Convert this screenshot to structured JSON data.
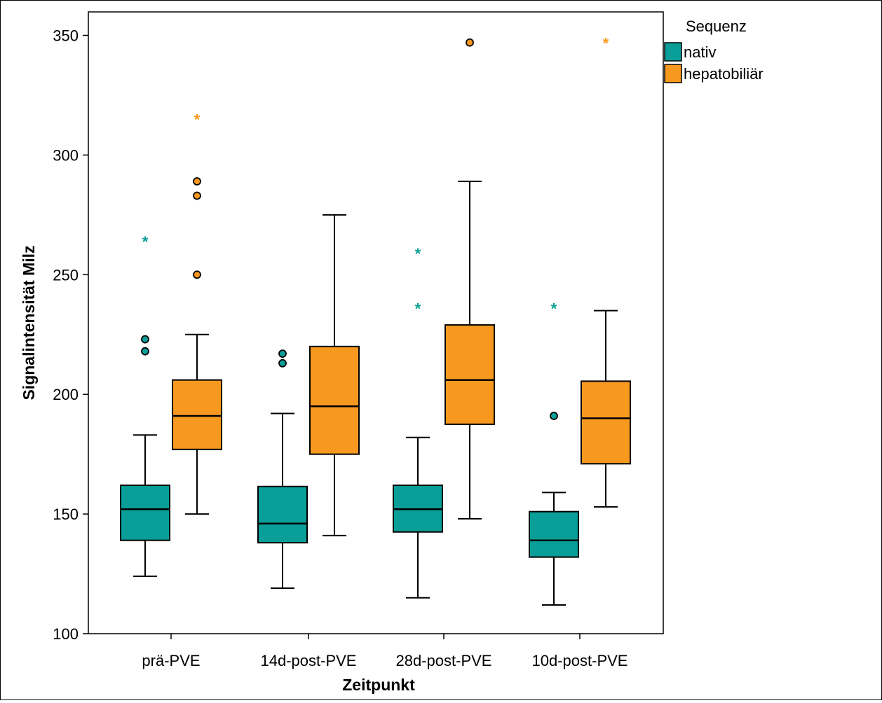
{
  "chart_data": {
    "type": "boxplot",
    "title": "",
    "xlabel": "Zeitpunkt",
    "ylabel": "Signalintensität Milz",
    "ylim": [
      100,
      360
    ],
    "yticks": [
      100,
      150,
      200,
      250,
      300,
      350
    ],
    "categories": [
      "prä-PVE",
      "14d-post-PVE",
      "28d-post-PVE",
      "10d-post-PVE"
    ],
    "grid": false,
    "legend": {
      "title": "Sequenz",
      "placement": "top-right outside"
    },
    "series": [
      {
        "name": "nativ",
        "color": "#0a9e98",
        "boxes": [
          {
            "whisker_low": 124,
            "q1": 139,
            "median": 152,
            "q3": 162,
            "whisker_high": 183,
            "outliers": [
              218,
              223
            ],
            "extremes": [
              265
            ]
          },
          {
            "whisker_low": 119,
            "q1": 138,
            "median": 146,
            "q3": 161.5,
            "whisker_high": 192,
            "outliers": [
              213,
              217
            ],
            "extremes": []
          },
          {
            "whisker_low": 115,
            "q1": 142.5,
            "median": 152,
            "q3": 162,
            "whisker_high": 182,
            "outliers": [],
            "extremes": [
              237,
              260
            ]
          },
          {
            "whisker_low": 112,
            "q1": 132,
            "median": 139,
            "q3": 151,
            "whisker_high": 159,
            "outliers": [
              191
            ],
            "extremes": [
              237
            ]
          }
        ]
      },
      {
        "name": "hepatobiliär",
        "color": "#f7991f",
        "boxes": [
          {
            "whisker_low": 150,
            "q1": 177,
            "median": 191,
            "q3": 206,
            "whisker_high": 225,
            "outliers": [
              250,
              283,
              289
            ],
            "extremes": [
              316
            ]
          },
          {
            "whisker_low": 141,
            "q1": 175,
            "median": 195,
            "q3": 220,
            "whisker_high": 275,
            "outliers": [],
            "extremes": []
          },
          {
            "whisker_low": 148,
            "q1": 187.5,
            "median": 206,
            "q3": 229,
            "whisker_high": 289,
            "outliers": [
              347
            ],
            "extremes": []
          },
          {
            "whisker_low": 153,
            "q1": 171,
            "median": 190,
            "q3": 205.5,
            "whisker_high": 235,
            "outliers": [],
            "extremes": [
              348
            ]
          }
        ]
      }
    ]
  }
}
